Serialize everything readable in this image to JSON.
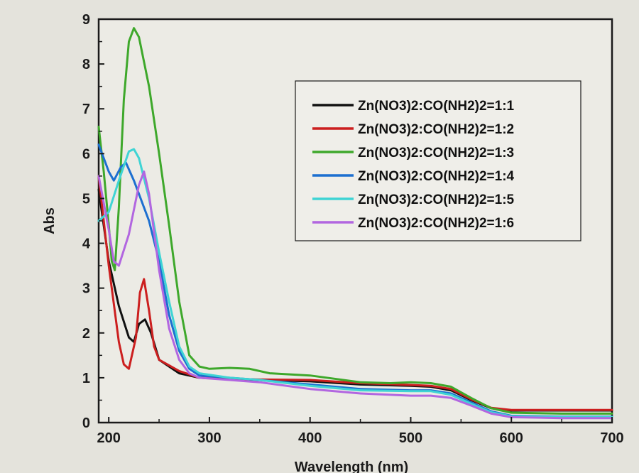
{
  "chart_data": {
    "type": "line",
    "title": "",
    "xlabel": "Wavelength (nm)",
    "ylabel": "Abs",
    "xlim": [
      190,
      700
    ],
    "ylim": [
      0,
      9
    ],
    "x_ticks": [
      "200",
      "300",
      "400",
      "500",
      "600",
      "700"
    ],
    "y_ticks": [
      "0",
      "1",
      "2",
      "3",
      "4",
      "5",
      "6",
      "7",
      "8",
      "9"
    ],
    "grid": false,
    "legend_position": "top-right",
    "series": [
      {
        "name": "Zn(NO3)2:CO(NH2)2=1:1",
        "color": "#111111",
        "points": [
          [
            190,
            5.2
          ],
          [
            200,
            3.6
          ],
          [
            210,
            2.6
          ],
          [
            220,
            1.9
          ],
          [
            225,
            1.8
          ],
          [
            230,
            2.2
          ],
          [
            236,
            2.3
          ],
          [
            242,
            2.0
          ],
          [
            250,
            1.4
          ],
          [
            270,
            1.1
          ],
          [
            290,
            1.0
          ],
          [
            320,
            0.97
          ],
          [
            350,
            0.95
          ],
          [
            400,
            0.92
          ],
          [
            450,
            0.85
          ],
          [
            500,
            0.82
          ],
          [
            520,
            0.8
          ],
          [
            540,
            0.72
          ],
          [
            560,
            0.5
          ],
          [
            580,
            0.32
          ],
          [
            600,
            0.27
          ],
          [
            650,
            0.27
          ],
          [
            700,
            0.27
          ]
        ]
      },
      {
        "name": "Zn(NO3)2:CO(NH2)2=1:2",
        "color": "#cc1f1f",
        "points": [
          [
            190,
            5.5
          ],
          [
            200,
            3.5
          ],
          [
            210,
            1.8
          ],
          [
            215,
            1.3
          ],
          [
            220,
            1.2
          ],
          [
            227,
            1.9
          ],
          [
            231,
            2.9
          ],
          [
            235,
            3.2
          ],
          [
            240,
            2.5
          ],
          [
            245,
            1.7
          ],
          [
            250,
            1.4
          ],
          [
            270,
            1.15
          ],
          [
            290,
            1.0
          ],
          [
            320,
            0.98
          ],
          [
            350,
            0.96
          ],
          [
            400,
            0.95
          ],
          [
            450,
            0.88
          ],
          [
            500,
            0.84
          ],
          [
            520,
            0.82
          ],
          [
            540,
            0.75
          ],
          [
            560,
            0.52
          ],
          [
            580,
            0.33
          ],
          [
            600,
            0.28
          ],
          [
            650,
            0.28
          ],
          [
            700,
            0.28
          ]
        ]
      },
      {
        "name": "Zn(NO3)2:CO(NH2)2=1:3",
        "color": "#3ea82b",
        "points": [
          [
            190,
            6.6
          ],
          [
            195,
            5.6
          ],
          [
            200,
            4.4
          ],
          [
            203,
            3.6
          ],
          [
            206,
            3.4
          ],
          [
            210,
            4.8
          ],
          [
            215,
            7.2
          ],
          [
            220,
            8.5
          ],
          [
            225,
            8.8
          ],
          [
            230,
            8.6
          ],
          [
            240,
            7.5
          ],
          [
            250,
            6.0
          ],
          [
            260,
            4.4
          ],
          [
            270,
            2.7
          ],
          [
            280,
            1.5
          ],
          [
            290,
            1.25
          ],
          [
            300,
            1.2
          ],
          [
            320,
            1.22
          ],
          [
            340,
            1.2
          ],
          [
            360,
            1.1
          ],
          [
            400,
            1.05
          ],
          [
            450,
            0.9
          ],
          [
            480,
            0.88
          ],
          [
            500,
            0.9
          ],
          [
            520,
            0.88
          ],
          [
            540,
            0.8
          ],
          [
            560,
            0.55
          ],
          [
            580,
            0.32
          ],
          [
            600,
            0.22
          ],
          [
            650,
            0.2
          ],
          [
            700,
            0.2
          ]
        ]
      },
      {
        "name": "Zn(NO3)2:CO(NH2)2=1:4",
        "color": "#1c6fd0",
        "points": [
          [
            190,
            6.2
          ],
          [
            200,
            5.6
          ],
          [
            205,
            5.4
          ],
          [
            212,
            5.7
          ],
          [
            217,
            5.8
          ],
          [
            225,
            5.4
          ],
          [
            240,
            4.5
          ],
          [
            250,
            3.6
          ],
          [
            260,
            2.4
          ],
          [
            270,
            1.6
          ],
          [
            280,
            1.2
          ],
          [
            290,
            1.05
          ],
          [
            320,
            1.0
          ],
          [
            350,
            0.95
          ],
          [
            400,
            0.85
          ],
          [
            450,
            0.75
          ],
          [
            500,
            0.72
          ],
          [
            520,
            0.72
          ],
          [
            540,
            0.65
          ],
          [
            560,
            0.45
          ],
          [
            580,
            0.25
          ],
          [
            600,
            0.15
          ],
          [
            650,
            0.13
          ],
          [
            700,
            0.13
          ]
        ]
      },
      {
        "name": "Zn(NO3)2:CO(NH2)2=1:5",
        "color": "#3fd4d4",
        "points": [
          [
            190,
            4.5
          ],
          [
            200,
            4.7
          ],
          [
            210,
            5.4
          ],
          [
            220,
            6.05
          ],
          [
            225,
            6.1
          ],
          [
            230,
            5.9
          ],
          [
            240,
            5.0
          ],
          [
            250,
            3.8
          ],
          [
            260,
            2.7
          ],
          [
            270,
            1.7
          ],
          [
            280,
            1.25
          ],
          [
            290,
            1.1
          ],
          [
            320,
            1.0
          ],
          [
            350,
            0.95
          ],
          [
            400,
            0.82
          ],
          [
            450,
            0.72
          ],
          [
            500,
            0.7
          ],
          [
            520,
            0.7
          ],
          [
            540,
            0.62
          ],
          [
            560,
            0.42
          ],
          [
            580,
            0.23
          ],
          [
            600,
            0.14
          ],
          [
            650,
            0.12
          ],
          [
            700,
            0.12
          ]
        ]
      },
      {
        "name": "Zn(NO3)2:CO(NH2)2=1:6",
        "color": "#b266e0",
        "points": [
          [
            190,
            5.5
          ],
          [
            200,
            4.3
          ],
          [
            205,
            3.6
          ],
          [
            210,
            3.5
          ],
          [
            220,
            4.2
          ],
          [
            230,
            5.3
          ],
          [
            235,
            5.6
          ],
          [
            240,
            5.1
          ],
          [
            250,
            3.4
          ],
          [
            260,
            2.1
          ],
          [
            270,
            1.4
          ],
          [
            280,
            1.1
          ],
          [
            290,
            1.0
          ],
          [
            320,
            0.95
          ],
          [
            350,
            0.9
          ],
          [
            400,
            0.75
          ],
          [
            450,
            0.65
          ],
          [
            500,
            0.6
          ],
          [
            520,
            0.6
          ],
          [
            540,
            0.55
          ],
          [
            560,
            0.38
          ],
          [
            580,
            0.2
          ],
          [
            600,
            0.12
          ],
          [
            650,
            0.1
          ],
          [
            700,
            0.1
          ]
        ]
      }
    ]
  }
}
